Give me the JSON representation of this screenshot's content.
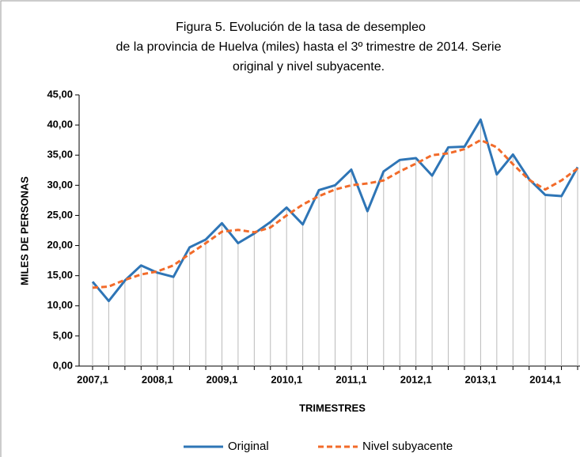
{
  "chart_data": {
    "type": "line",
    "title": "Figura 5. Evolución de la tasa de desempleo",
    "subtitle": "de la provincia de Huelva (miles) hasta el 3º trimestre de 2014. Serie",
    "subtitle2": "original y nivel subyacente.",
    "x_label": "TRIMESTRES",
    "y_label": "MILES DE PERSONAS",
    "categories": [
      "2007,1",
      null,
      null,
      null,
      "2008,1",
      null,
      null,
      null,
      "2009,1",
      null,
      null,
      null,
      "2010,1",
      null,
      null,
      null,
      "2011,1",
      null,
      null,
      null,
      "2012,1",
      null,
      null,
      null,
      "2013,1",
      null,
      null,
      null,
      "2014,1",
      null,
      null
    ],
    "series": [
      {
        "name": "Original",
        "color": "#2e75b6",
        "dash": false,
        "values": [
          14.0,
          10.8,
          14.2,
          16.7,
          15.5,
          14.8,
          19.7,
          21.0,
          23.7,
          20.4,
          22.0,
          23.9,
          26.3,
          23.5,
          29.2,
          30.0,
          32.6,
          25.7,
          32.3,
          34.2,
          34.5,
          31.6,
          36.3,
          36.4,
          40.9,
          31.8,
          35.1,
          31.0,
          28.4,
          28.2,
          33.0
        ]
      },
      {
        "name": "Nivel subyacente",
        "color": "#f26b2a",
        "dash": true,
        "values": [
          13.0,
          13.2,
          14.3,
          15.2,
          15.7,
          16.7,
          18.6,
          20.4,
          22.3,
          22.6,
          22.2,
          23.0,
          25.0,
          26.8,
          28.2,
          29.3,
          30.0,
          30.3,
          30.8,
          32.3,
          33.6,
          35.0,
          35.3,
          36.0,
          37.5,
          36.3,
          33.5,
          30.9,
          29.3,
          30.8,
          32.8
        ]
      }
    ],
    "drop_lines": true,
    "ylim": [
      0,
      45
    ],
    "yticks": [
      {
        "value": 0,
        "label": "0,00"
      },
      {
        "value": 5,
        "label": "5,00"
      },
      {
        "value": 10,
        "label": "10,00"
      },
      {
        "value": 15,
        "label": "15,00"
      },
      {
        "value": 20,
        "label": "20,00"
      },
      {
        "value": 25,
        "label": "25,00"
      },
      {
        "value": 30,
        "label": "30,00"
      },
      {
        "value": 35,
        "label": "35,00"
      },
      {
        "value": 40,
        "label": "40,00"
      },
      {
        "value": 45,
        "label": "45,00"
      }
    ],
    "legend": "bottom"
  }
}
